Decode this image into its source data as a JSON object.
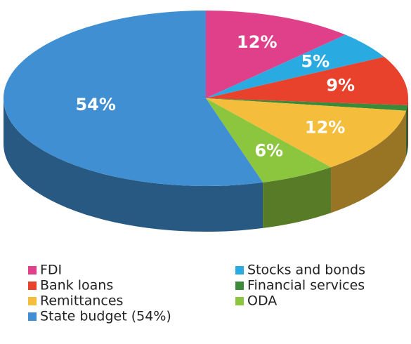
{
  "chart_data": {
    "type": "pie",
    "categories": [
      "FDI",
      "Stocks and bonds",
      "Bank loans",
      "Financial services",
      "Remittances",
      "ODA",
      "State budget (54%)"
    ],
    "values": [
      12,
      5,
      9,
      1,
      12,
      6,
      54
    ],
    "value_labels": [
      "12%",
      "5%",
      "9%",
      null,
      "12%",
      "6%",
      "54%"
    ],
    "colors": [
      "#e0408a",
      "#29abe2",
      "#e8412c",
      "#3a8a3a",
      "#f5bd3c",
      "#8cc63f",
      "#3f8fd2"
    ],
    "legend": "bottom"
  }
}
